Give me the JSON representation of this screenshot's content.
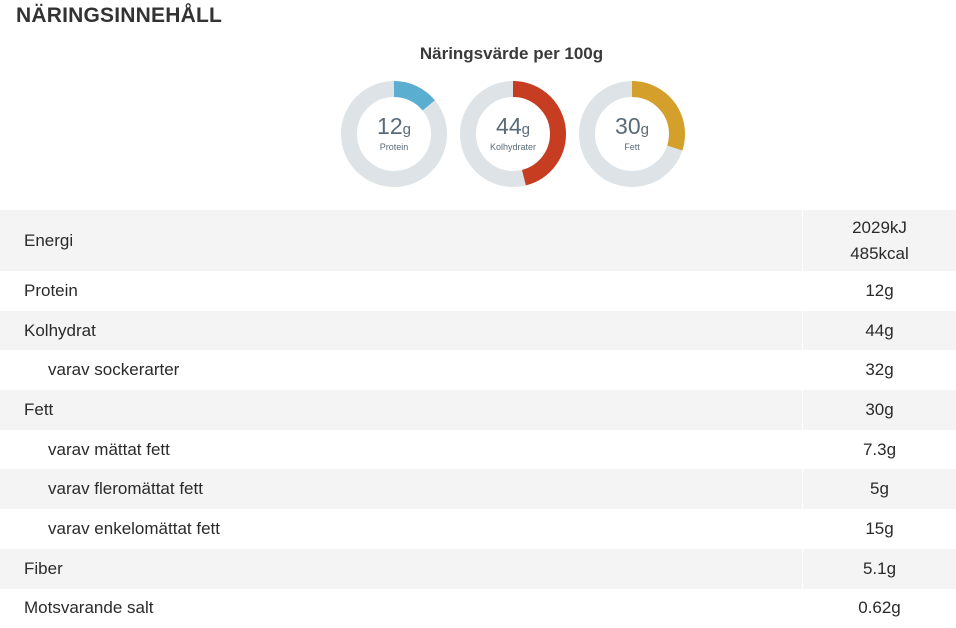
{
  "section_title": "NÄRINGSINNEHÅLL",
  "chart_heading": "Näringsvärde per 100g",
  "colors": {
    "track": "#dde3e7",
    "protein": "#5aaed0",
    "kolhydrater": "#c63d22",
    "fett": "#d4a02b"
  },
  "donuts": [
    {
      "amount": "12",
      "unit": "g",
      "label": "Protein",
      "fraction": 0.14,
      "color": "#5aaed0"
    },
    {
      "amount": "44",
      "unit": "g",
      "label": "Kolhydrater",
      "fraction": 0.46,
      "color": "#c63d22"
    },
    {
      "amount": "30",
      "unit": "g",
      "label": "Fett",
      "fraction": 0.3,
      "color": "#d4a02b"
    }
  ],
  "rows": [
    {
      "label": "Energi",
      "values": [
        "2029kJ",
        "485kcal"
      ]
    },
    {
      "label": "Protein",
      "values": [
        "12g"
      ]
    },
    {
      "label": "Kolhydrat",
      "values": [
        "44g"
      ]
    },
    {
      "label": "varav sockerarter",
      "values": [
        "32g"
      ]
    },
    {
      "label": "Fett",
      "values": [
        "30g"
      ]
    },
    {
      "label": "varav mättat fett",
      "values": [
        "7.3g"
      ]
    },
    {
      "label": "varav fleromättat fett",
      "values": [
        "5g"
      ]
    },
    {
      "label": "varav enkelomättat fett",
      "values": [
        "15g"
      ]
    },
    {
      "label": "Fiber",
      "values": [
        "5.1g"
      ]
    },
    {
      "label": "Motsvarande salt",
      "values": [
        "0.62g"
      ]
    }
  ]
}
